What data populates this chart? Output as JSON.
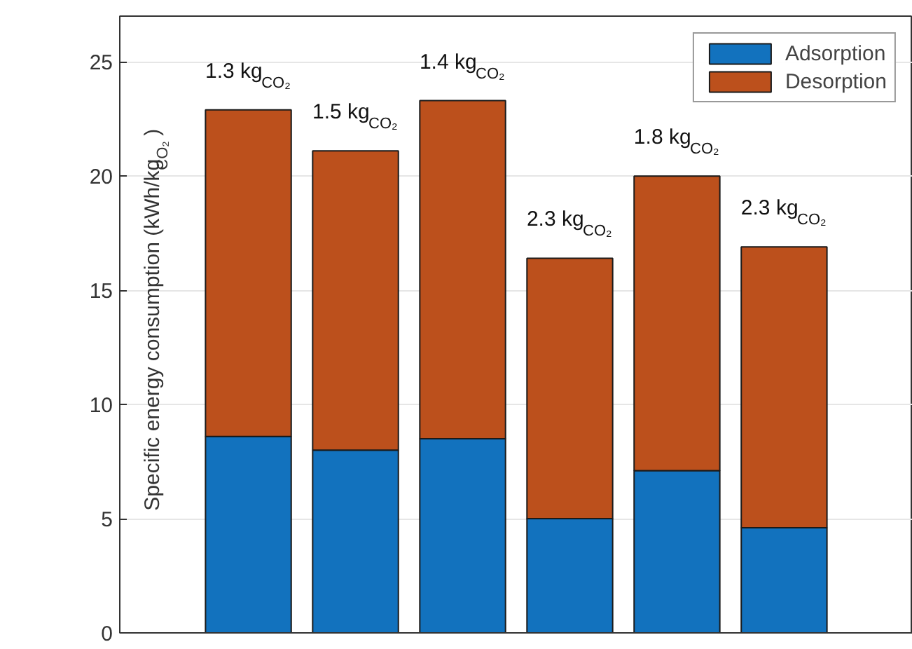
{
  "chart_data": {
    "type": "bar",
    "stacked": true,
    "ylabel": "Specific energy consumption (kWh/kg$_{CO₂}$)",
    "categories": [
      null,
      null,
      null,
      null,
      null,
      null
    ],
    "series": [
      {
        "name": "Adsorption",
        "color": "#1272be",
        "values": [
          8.6,
          8.0,
          8.5,
          5.0,
          7.1,
          4.6
        ]
      },
      {
        "name": "Desorption",
        "color": "#bc501c",
        "values": [
          14.3,
          13.1,
          14.8,
          11.4,
          12.9,
          12.3
        ]
      }
    ],
    "annotations": [
      {
        "text": "1.3 kg$_{CO₂}$",
        "y": 22.9
      },
      {
        "text": "1.5 kg$_{CO₂}$",
        "y": 21.1
      },
      {
        "text": "1.4 kg$_{CO₂}$",
        "y": 23.3
      },
      {
        "text": "2.3 kg$_{CO₂}$",
        "y": 16.4
      },
      {
        "text": "1.8 kg$_{CO₂}$",
        "y": 20.0
      },
      {
        "text": "2.3 kg$_{CO₂}$",
        "y": 16.9
      }
    ],
    "ylim": [
      0,
      27
    ],
    "yticks": [
      0,
      5,
      10,
      15,
      20,
      25
    ],
    "grid": "y",
    "legend": "top right",
    "tick_labels": "y"
  }
}
